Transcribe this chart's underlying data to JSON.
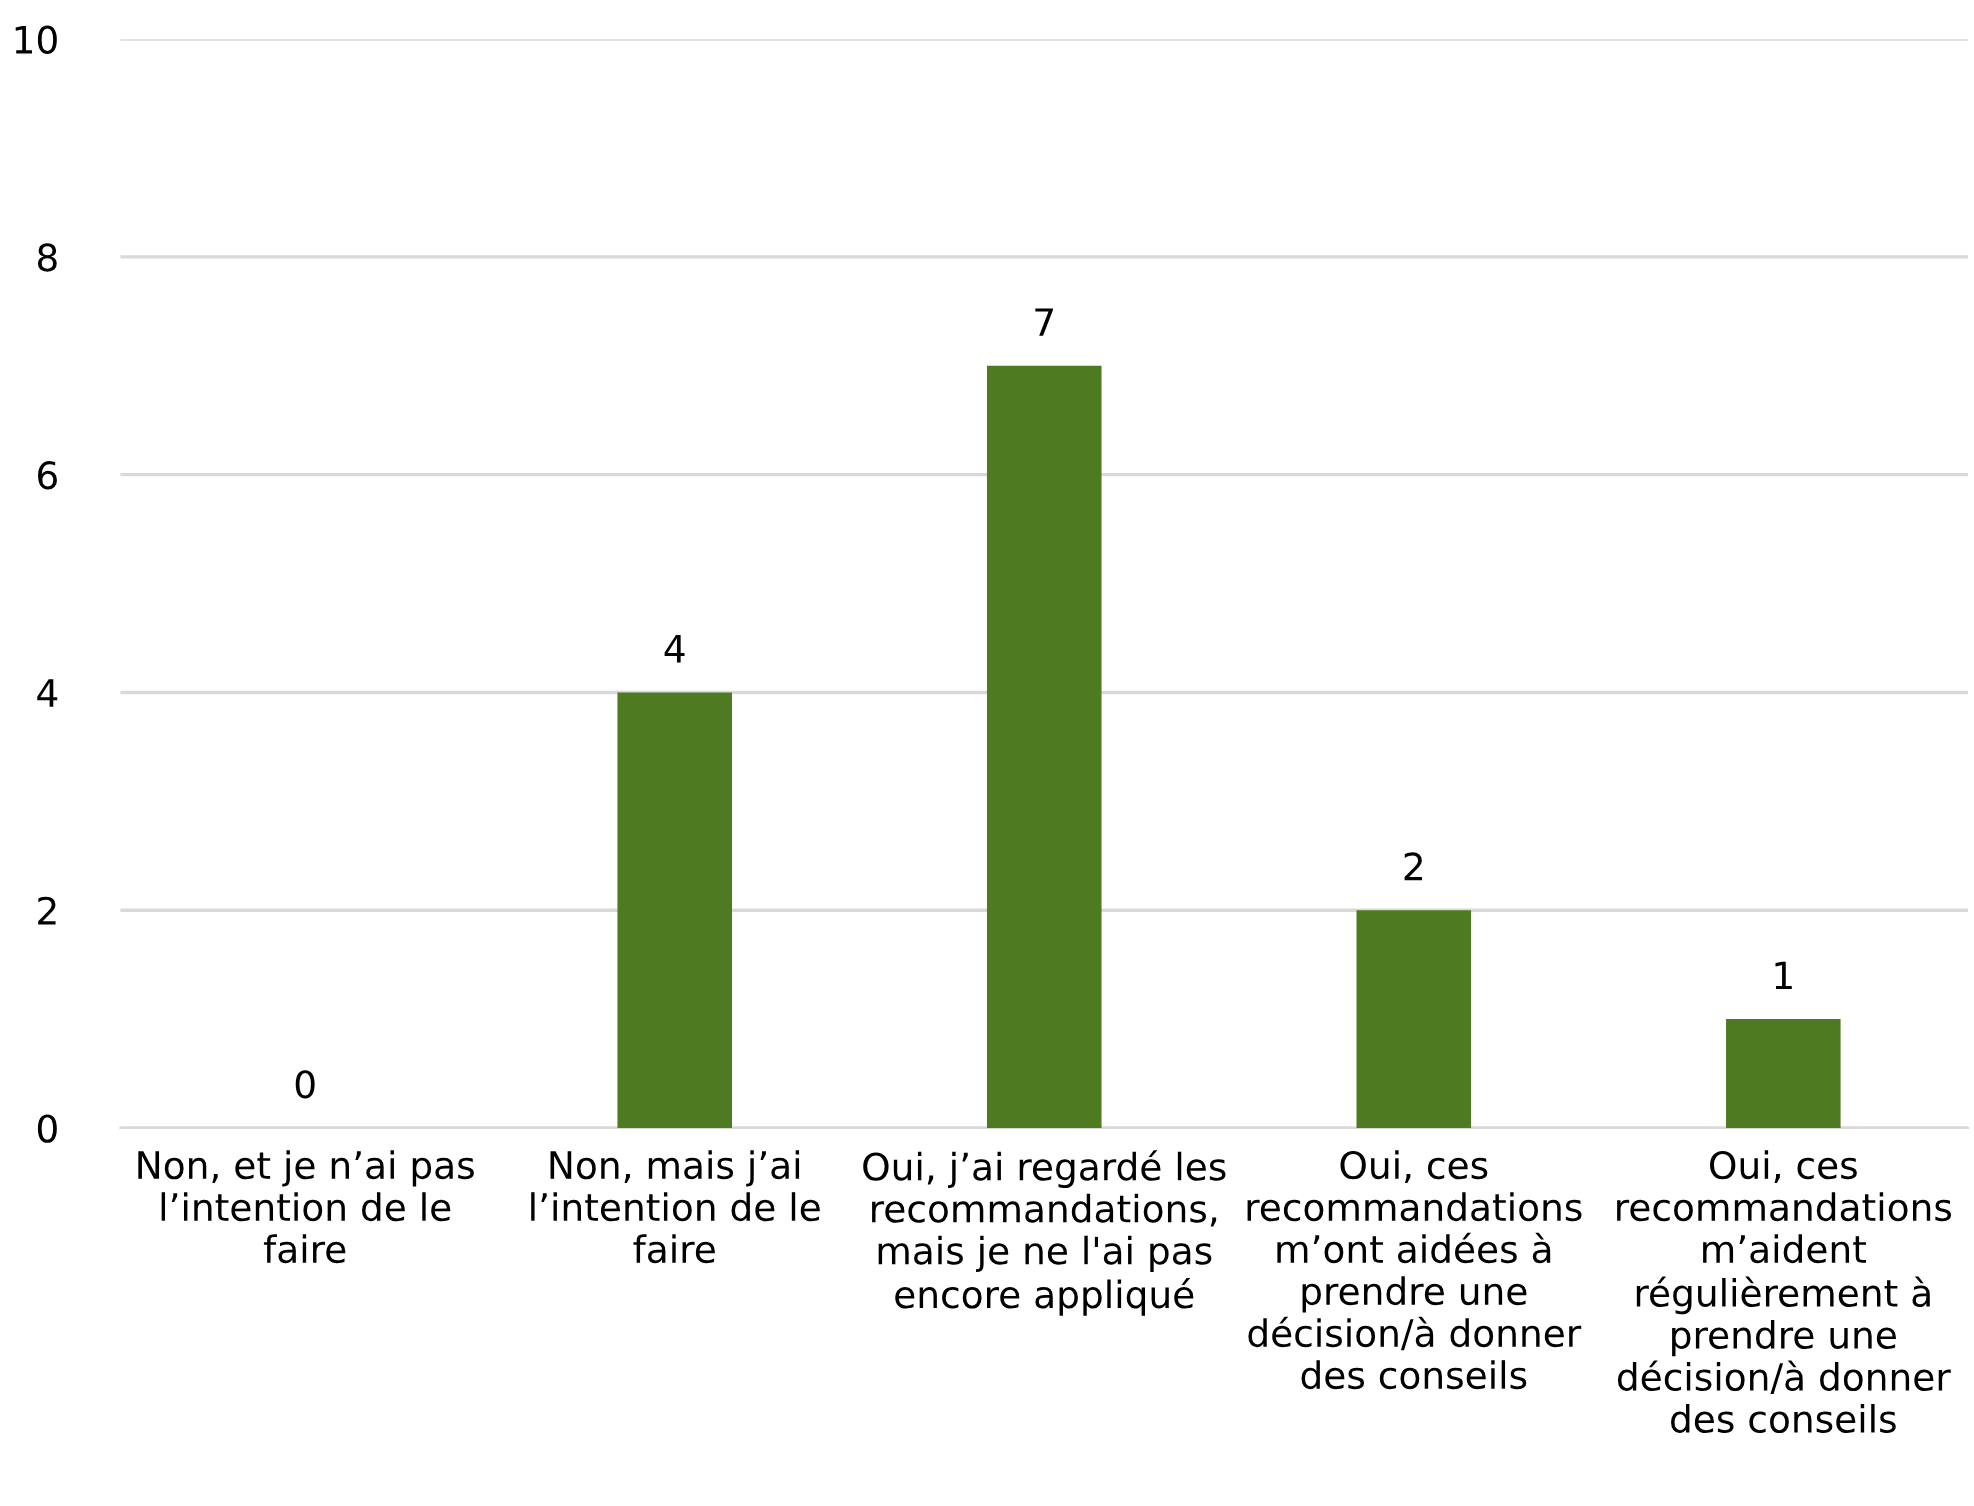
{
  "chart_data": {
    "type": "bar",
    "categories": [
      "Non, et je n’ai pas\nl’intention de le\nfaire",
      "Non, mais j’ai\nl’intention de le\nfaire",
      "Oui, j’ai regardé les\nrecommandations,\nmais je ne l'ai pas\nencore appliqué",
      "Oui, ces\nrecommandations\nm’ont aidées à\nprendre une\ndécision/à donner\ndes conseils",
      "Oui, ces\nrecommandations\nm’aident\nrégulièrement à\nprendre une\ndécision/à donner\ndes conseils"
    ],
    "values": [
      0,
      4,
      7,
      2,
      1
    ],
    "color": "#4e7a21",
    "ylim": [
      0,
      10
    ],
    "yticks": [
      0,
      2,
      4,
      6,
      8,
      10
    ],
    "grid": "y",
    "data_labels": true,
    "legend": false
  }
}
